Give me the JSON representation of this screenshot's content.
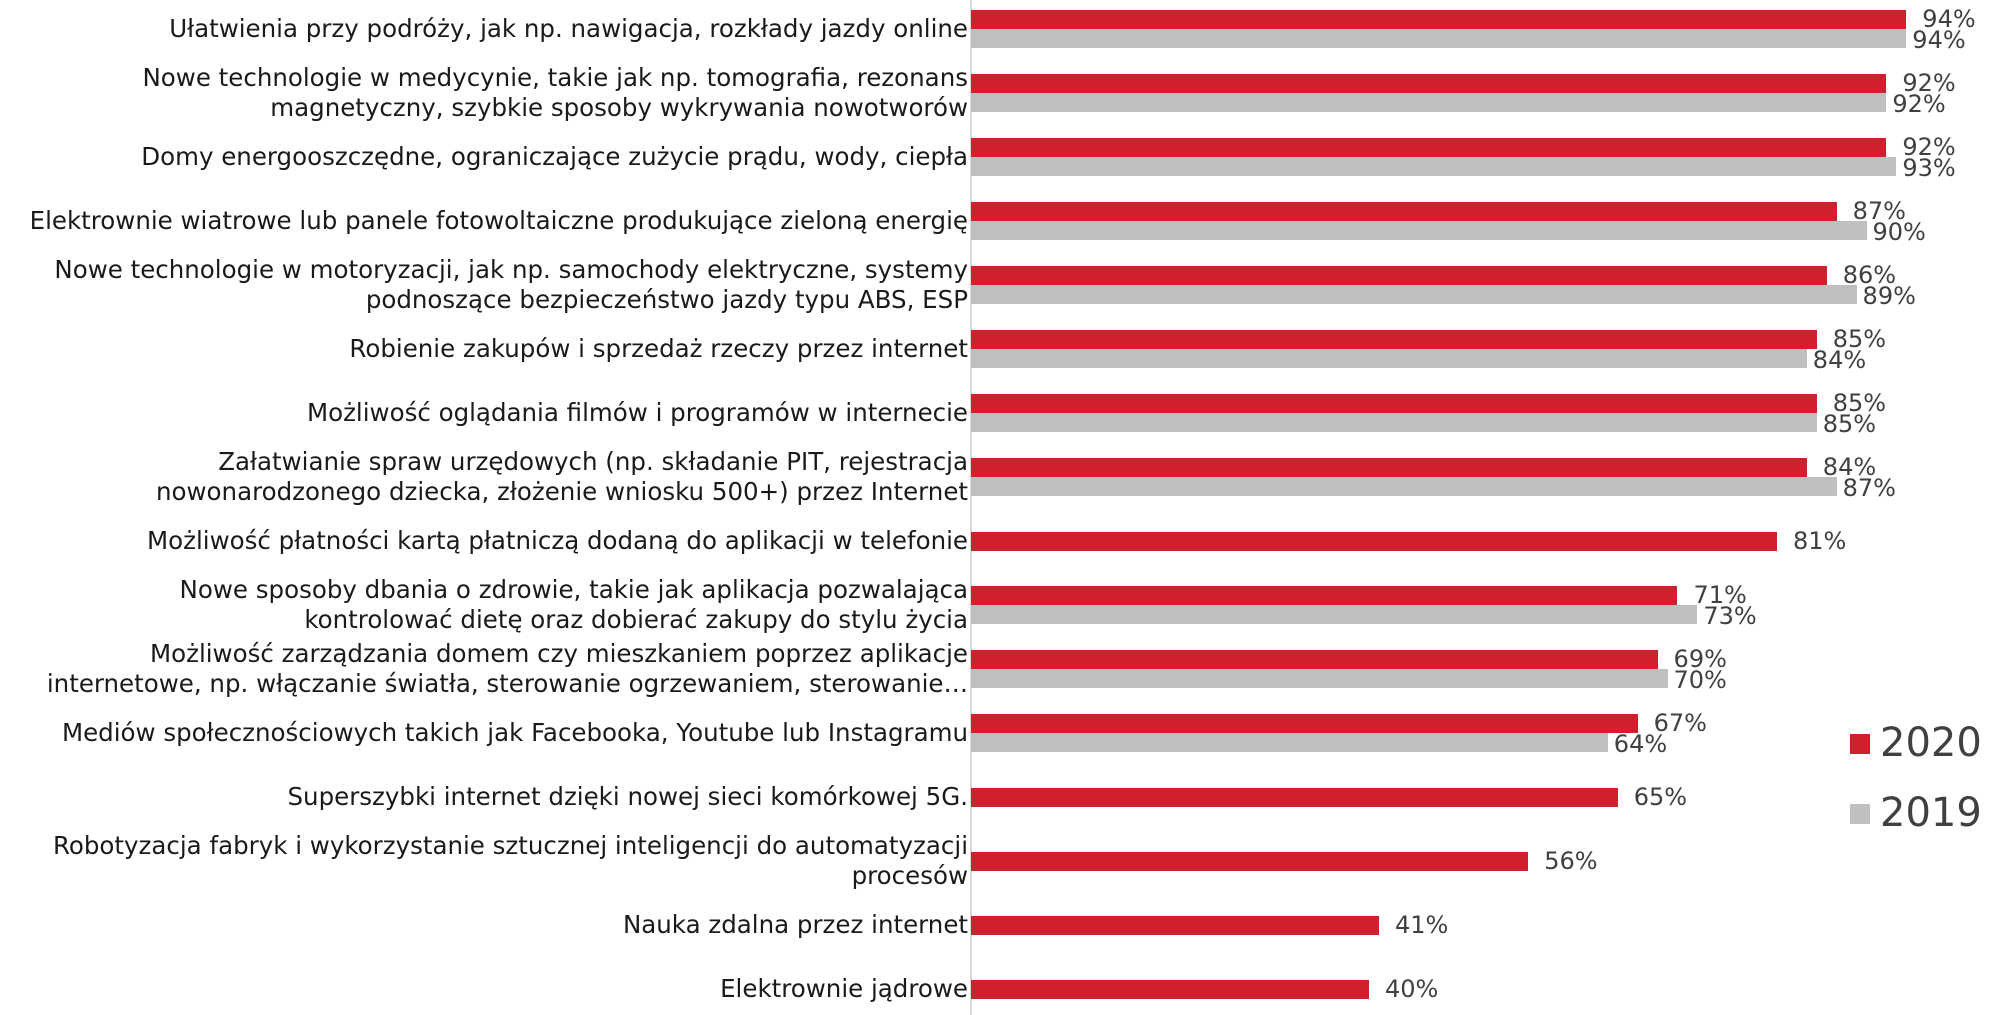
{
  "chart_data": {
    "type": "bar",
    "orientation": "horizontal",
    "title": "",
    "xlabel": "",
    "ylabel": "",
    "xlim": [
      0,
      100
    ],
    "grid": false,
    "legend_position": "right",
    "categories": [
      "Ułatwienia przy podróży, jak np. nawigacja, rozkłady jazdy online",
      "Nowe technologie w medycynie, takie jak np. tomografia, rezonans\nmagnetyczny, szybkie sposoby wykrywania nowotworów",
      "Domy energooszczędne, ograniczające zużycie prądu, wody, ciepła",
      "Elektrownie wiatrowe lub panele fotowoltaiczne produkujące zieloną energię",
      "Nowe technologie w motoryzacji, jak np. samochody elektryczne, systemy\npodnoszące bezpieczeństwo jazdy typu ABS, ESP",
      "Robienie zakupów i sprzedaż rzeczy przez internet",
      "Możliwość oglądania filmów i programów w internecie",
      "Załatwianie spraw urzędowych (np. składanie PIT, rejestracja\nnowonarodzonego dziecka, złożenie wniosku 500+) przez Internet",
      "Możliwość płatności kartą płatniczą dodaną do aplikacji w telefonie",
      "Nowe sposoby dbania o zdrowie, takie jak aplikacja pozwalająca\nkontrolować dietę oraz dobierać zakupy do stylu życia",
      "Możliwość zarządzania domem czy mieszkaniem poprzez aplikacje\ninternetowe, np. włączanie światła, sterowanie ogrzewaniem, sterowanie…",
      "Mediów społecznościowych takich jak Facebooka, Youtube lub Instagramu",
      "Superszybki internet dzięki nowej sieci komórkowej 5G.",
      "Robotyzacja fabryk i wykorzystanie sztucznej inteligencji do automatyzacji\nprocesów",
      "Nauka zdalna przez internet",
      "Elektrownie jądrowe"
    ],
    "series": [
      {
        "name": "2020",
        "color": "#d0202e",
        "values": [
          94,
          92,
          92,
          87,
          86,
          85,
          85,
          84,
          81,
          71,
          69,
          67,
          65,
          56,
          41,
          40
        ],
        "labels": [
          "94%",
          "92%",
          "92%",
          "87%",
          "86%",
          "85%",
          "85%",
          "84%",
          "81%",
          "71%",
          "69%",
          "67%",
          "65%",
          "56%",
          "41%",
          "40%"
        ]
      },
      {
        "name": "2019",
        "color": "#bfbfbf",
        "values": [
          94,
          92,
          93,
          90,
          89,
          84,
          85,
          87,
          null,
          73,
          70,
          64,
          null,
          null,
          null,
          null
        ],
        "labels": [
          "94%",
          "92%",
          "93%",
          "90%",
          "89%",
          "84%",
          "85%",
          "87%",
          null,
          "73%",
          "70%",
          "64%",
          null,
          null,
          null,
          null
        ]
      }
    ]
  }
}
